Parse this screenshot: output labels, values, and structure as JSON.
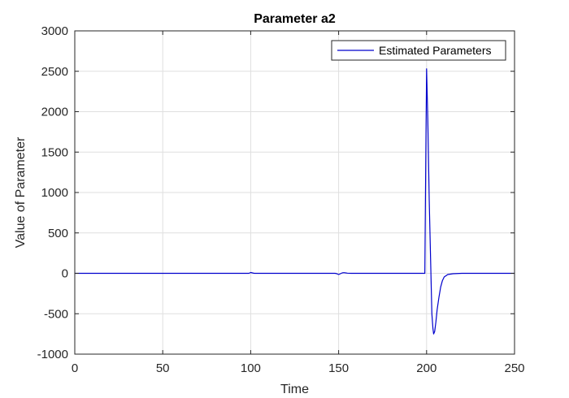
{
  "chart_data": {
    "type": "line",
    "title": "Parameter a2",
    "xlabel": "Time",
    "ylabel": "Value of Parameter",
    "xlim": [
      0,
      250
    ],
    "ylim": [
      -1000,
      3000
    ],
    "xticks": [
      0,
      50,
      100,
      150,
      200,
      250
    ],
    "yticks": [
      -1000,
      -500,
      0,
      500,
      1000,
      1500,
      2000,
      2500,
      3000
    ],
    "grid": true,
    "legend_position": "top-right",
    "series": [
      {
        "name": "Estimated Parameters",
        "color": "#0000cd",
        "x": [
          0,
          50,
          99,
          100,
          101,
          102,
          105,
          110,
          148,
          149,
          150,
          151,
          152,
          153,
          154,
          155,
          157,
          160,
          199,
          199.5,
          200,
          200.7,
          201.5,
          202.3,
          203,
          203.6,
          204,
          204.6,
          205.3,
          206,
          207,
          208,
          209,
          210,
          212,
          215,
          220,
          230,
          250
        ],
        "y": [
          0,
          0,
          0,
          10,
          5,
          0,
          0,
          0,
          0,
          -5,
          -15,
          -5,
          5,
          8,
          5,
          2,
          0,
          0,
          0,
          1300,
          2530,
          1900,
          900,
          150,
          -500,
          -680,
          -750,
          -720,
          -600,
          -450,
          -300,
          -170,
          -90,
          -45,
          -15,
          -5,
          0,
          0,
          0
        ]
      }
    ]
  }
}
